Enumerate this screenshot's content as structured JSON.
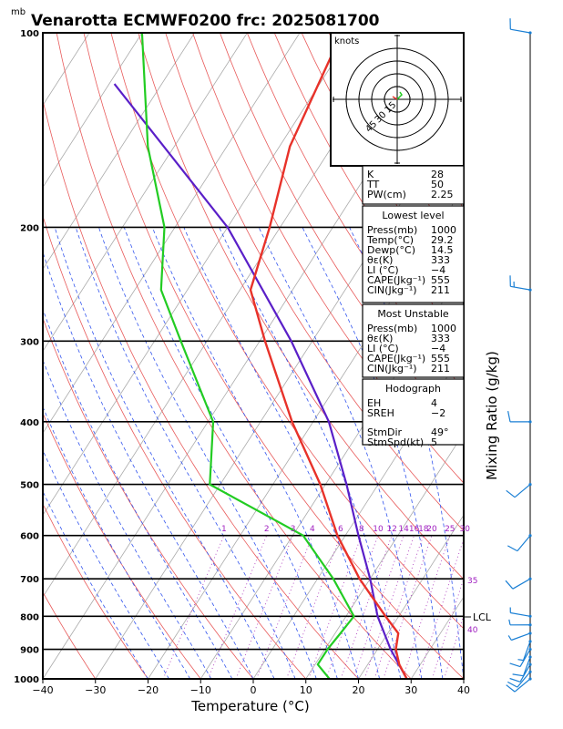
{
  "chart_data": {
    "type": "skew-t",
    "title": "Venarotta ECMWF0200 frc: 2025081700",
    "pressure_unit": "mb",
    "xlabel": "Temperature (°C)",
    "ylabel_right": "Mixing Ratio (g/kg)",
    "xlim": [
      -40,
      40
    ],
    "ylim": [
      1000,
      100
    ],
    "x_ticks": [
      "−40",
      "−30",
      "−20",
      "−10",
      "0",
      "10",
      "20",
      "30",
      "40"
    ],
    "pressure_levels": [
      "100",
      "200",
      "300",
      "400",
      "500",
      "600",
      "700",
      "800",
      "900",
      "1000"
    ],
    "mixing_ratio_labels": [
      "1",
      "2",
      "3",
      "4",
      "6",
      "8",
      "10",
      "12",
      "14",
      "16",
      "18",
      "20",
      "25",
      "30"
    ],
    "mixing_ratio_side_labels": [
      "35",
      "40"
    ],
    "lcl_label": "LCL",
    "lcl_pressure": 800,
    "temperature": {
      "p": [
        1000,
        950,
        900,
        850,
        800,
        700,
        600,
        500,
        400,
        300,
        250,
        200,
        150,
        100
      ],
      "t": [
        29.2,
        26,
        23.5,
        22,
        17.5,
        8,
        -1.5,
        -11,
        -24,
        -39,
        -48,
        -52,
        -58,
        -62
      ]
    },
    "dewpoint": {
      "p": [
        1000,
        950,
        900,
        850,
        800,
        700,
        600,
        500,
        400,
        300,
        250,
        200,
        150,
        100
      ],
      "t": [
        14.5,
        10.5,
        10.5,
        11,
        11.5,
        3,
        -8,
        -32,
        -39,
        -55,
        -65,
        -72,
        -85,
        -100
      ]
    },
    "parcel": {
      "p": [
        1000,
        900,
        800,
        700,
        600,
        500,
        400,
        300,
        200,
        120
      ],
      "t": [
        29.2,
        22.5,
        16,
        10,
        2.5,
        -6,
        -17,
        -34,
        -60,
        -99
      ]
    },
    "hodograph": {
      "unit_label": "knots",
      "ring_labels": [
        "15",
        "30",
        "45"
      ]
    },
    "indices": [
      {
        "label": "K",
        "value": "28"
      },
      {
        "label": "TT",
        "value": "50"
      },
      {
        "label": "PW(cm)",
        "value": "2.25"
      }
    ],
    "lowest_level": {
      "heading": "Lowest level",
      "rows": [
        {
          "label": "Press(mb)",
          "value": "1000"
        },
        {
          "label": "Temp(°C)",
          "value": "29.2"
        },
        {
          "label": "Dewp(°C)",
          "value": "14.5"
        },
        {
          "label": "θε(K)",
          "value": "333"
        },
        {
          "label": "LI (°C)",
          "value": "−4"
        },
        {
          "label": "CAPE(Jkg⁻¹)",
          "value": "555"
        },
        {
          "label": "CIN(Jkg⁻¹)",
          "value": "211"
        }
      ]
    },
    "most_unstable": {
      "heading": "Most Unstable",
      "rows": [
        {
          "label": "Press(mb)",
          "value": "1000"
        },
        {
          "label": "θε(K)",
          "value": "333"
        },
        {
          "label": "LI (°C)",
          "value": "−4"
        },
        {
          "label": "CAPE(Jkg⁻¹)",
          "value": "555"
        },
        {
          "label": "CIN(Jkg⁻¹)",
          "value": "211"
        }
      ]
    },
    "hodograph_params": {
      "heading": "Hodograph",
      "rows": [
        {
          "label": "EH",
          "value": "4"
        },
        {
          "label": "SREH",
          "value": "−2"
        },
        {
          "label": "StmDir",
          "value": "49°"
        },
        {
          "label": "StmSpd(kt)",
          "value": "5"
        }
      ]
    },
    "colors": {
      "temperature": "#e8322a",
      "dewpoint": "#22cc22",
      "parcel": "#5a1fc8",
      "isotherm": "#aaaaaa",
      "dry_adiabat": "#e85a5a",
      "moist_adiabat": "#3355ee",
      "mixing_ratio": "#b040c0",
      "wind": "#1a7fd4"
    },
    "wind_barbs": [
      {
        "p": 1000,
        "dir": 230,
        "spd": 10
      },
      {
        "p": 975,
        "dir": 220,
        "spd": 12
      },
      {
        "p": 950,
        "dir": 210,
        "spd": 12
      },
      {
        "p": 925,
        "dir": 200,
        "spd": 10
      },
      {
        "p": 900,
        "dir": 210,
        "spd": 8
      },
      {
        "p": 875,
        "dir": 200,
        "spd": 6
      },
      {
        "p": 850,
        "dir": 250,
        "spd": 5
      },
      {
        "p": 825,
        "dir": 270,
        "spd": 5
      },
      {
        "p": 800,
        "dir": 280,
        "spd": 5
      },
      {
        "p": 700,
        "dir": 240,
        "spd": 10
      },
      {
        "p": 600,
        "dir": 220,
        "spd": 10
      },
      {
        "p": 500,
        "dir": 230,
        "spd": 10
      },
      {
        "p": 400,
        "dir": 270,
        "spd": 10
      },
      {
        "p": 250,
        "dir": 280,
        "spd": 15
      },
      {
        "p": 100,
        "dir": 280,
        "spd": 10
      }
    ]
  }
}
